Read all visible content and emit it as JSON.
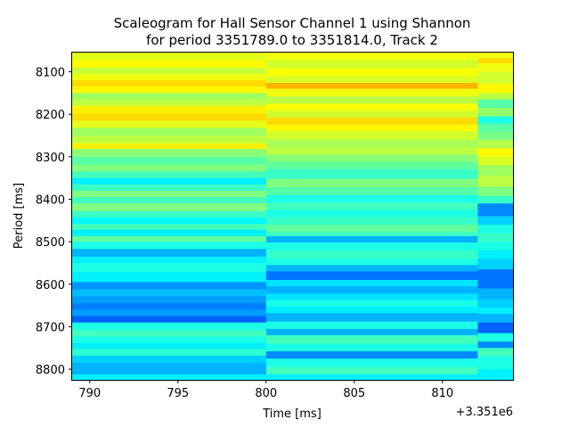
{
  "chart_data": {
    "type": "heatmap",
    "title_lines": [
      "Scaleogram for Hall Sensor Channel 1 using Shannon",
      "for period 3351789.0 to 3351814.0, Track 2"
    ],
    "xlabel": "Time [ms]",
    "ylabel": "Period [ms]",
    "x_offset_label": "+3.351e6",
    "x_ticks": [
      790,
      795,
      800,
      805,
      810
    ],
    "x_tick_labels": [
      "790",
      "795",
      "800",
      "805",
      "810"
    ],
    "y_ticks": [
      8100,
      8200,
      8300,
      8400,
      8500,
      8600,
      8700,
      8800
    ],
    "y_tick_labels": [
      "8100",
      "8200",
      "8300",
      "8400",
      "8500",
      "8600",
      "8700",
      "8800"
    ],
    "xlim": [
      789,
      814
    ],
    "ylim_top": 8055,
    "ylim_bottom": 8825,
    "colormap": "jet",
    "colormap_range": [
      0,
      1
    ],
    "columns": [
      {
        "x_start": 789,
        "x_end": 800,
        "rows": [
          [
            8055,
            8073,
            0.6
          ],
          [
            8073,
            8090,
            0.63
          ],
          [
            8090,
            8105,
            0.57
          ],
          [
            8105,
            8120,
            0.61
          ],
          [
            8120,
            8135,
            0.66
          ],
          [
            8135,
            8150,
            0.63
          ],
          [
            8150,
            8165,
            0.53
          ],
          [
            8165,
            8180,
            0.56
          ],
          [
            8180,
            8198,
            0.64
          ],
          [
            8198,
            8215,
            0.66
          ],
          [
            8215,
            8232,
            0.6
          ],
          [
            8232,
            8250,
            0.53
          ],
          [
            8250,
            8268,
            0.56
          ],
          [
            8268,
            8282,
            0.64
          ],
          [
            8282,
            8300,
            0.51
          ],
          [
            8300,
            8318,
            0.46
          ],
          [
            8318,
            8335,
            0.5
          ],
          [
            8335,
            8350,
            0.44
          ],
          [
            8350,
            8365,
            0.36
          ],
          [
            8365,
            8380,
            0.43
          ],
          [
            8380,
            8395,
            0.5
          ],
          [
            8395,
            8410,
            0.44
          ],
          [
            8410,
            8428,
            0.5
          ],
          [
            8428,
            8443,
            0.43
          ],
          [
            8443,
            8458,
            0.37
          ],
          [
            8458,
            8472,
            0.44
          ],
          [
            8472,
            8487,
            0.36
          ],
          [
            8487,
            8500,
            0.47
          ],
          [
            8500,
            8517,
            0.4
          ],
          [
            8517,
            8535,
            0.3
          ],
          [
            8535,
            8550,
            0.36
          ],
          [
            8550,
            8572,
            0.4
          ],
          [
            8572,
            8595,
            0.36
          ],
          [
            8595,
            8612,
            0.27
          ],
          [
            8612,
            8628,
            0.31
          ],
          [
            8628,
            8645,
            0.28
          ],
          [
            8645,
            8660,
            0.25
          ],
          [
            8660,
            8675,
            0.28
          ],
          [
            8675,
            8690,
            0.22
          ],
          [
            8690,
            8708,
            0.4
          ],
          [
            8708,
            8723,
            0.44
          ],
          [
            8723,
            8738,
            0.4
          ],
          [
            8738,
            8752,
            0.36
          ],
          [
            8752,
            8768,
            0.42
          ],
          [
            8768,
            8785,
            0.33
          ],
          [
            8785,
            8812,
            0.3
          ],
          [
            8812,
            8825,
            0.36
          ]
        ]
      },
      {
        "x_start": 800,
        "x_end": 812,
        "rows": [
          [
            8055,
            8073,
            0.61
          ],
          [
            8073,
            8092,
            0.58
          ],
          [
            8092,
            8110,
            0.62
          ],
          [
            8110,
            8126,
            0.59
          ],
          [
            8126,
            8140,
            0.7
          ],
          [
            8140,
            8158,
            0.61
          ],
          [
            8158,
            8175,
            0.56
          ],
          [
            8175,
            8192,
            0.62
          ],
          [
            8192,
            8208,
            0.58
          ],
          [
            8208,
            8225,
            0.66
          ],
          [
            8225,
            8240,
            0.63
          ],
          [
            8240,
            8260,
            0.58
          ],
          [
            8260,
            8278,
            0.54
          ],
          [
            8278,
            8295,
            0.56
          ],
          [
            8295,
            8312,
            0.51
          ],
          [
            8312,
            8330,
            0.47
          ],
          [
            8330,
            8352,
            0.43
          ],
          [
            8352,
            8372,
            0.5
          ],
          [
            8372,
            8390,
            0.46
          ],
          [
            8390,
            8408,
            0.4
          ],
          [
            8408,
            8425,
            0.44
          ],
          [
            8425,
            8442,
            0.4
          ],
          [
            8442,
            8460,
            0.43
          ],
          [
            8460,
            8478,
            0.47
          ],
          [
            8478,
            8487,
            0.43
          ],
          [
            8487,
            8502,
            0.3
          ],
          [
            8502,
            8520,
            0.4
          ],
          [
            8520,
            8540,
            0.43
          ],
          [
            8540,
            8555,
            0.4
          ],
          [
            8555,
            8570,
            0.3
          ],
          [
            8570,
            8590,
            0.24
          ],
          [
            8590,
            8605,
            0.35
          ],
          [
            8605,
            8622,
            0.3
          ],
          [
            8622,
            8638,
            0.35
          ],
          [
            8638,
            8652,
            0.4
          ],
          [
            8652,
            8668,
            0.36
          ],
          [
            8668,
            8688,
            0.3
          ],
          [
            8688,
            8705,
            0.4
          ],
          [
            8705,
            8720,
            0.3
          ],
          [
            8720,
            8740,
            0.44
          ],
          [
            8740,
            8758,
            0.4
          ],
          [
            8758,
            8775,
            0.26
          ],
          [
            8775,
            8795,
            0.4
          ],
          [
            8795,
            8812,
            0.44
          ],
          [
            8812,
            8825,
            0.36
          ]
        ]
      },
      {
        "x_start": 812,
        "x_end": 814,
        "rows": [
          [
            8055,
            8068,
            0.61
          ],
          [
            8068,
            8080,
            0.66
          ],
          [
            8080,
            8100,
            0.61
          ],
          [
            8100,
            8128,
            0.58
          ],
          [
            8128,
            8150,
            0.63
          ],
          [
            8150,
            8165,
            0.56
          ],
          [
            8165,
            8185,
            0.46
          ],
          [
            8185,
            8205,
            0.52
          ],
          [
            8205,
            8222,
            0.4
          ],
          [
            8222,
            8240,
            0.46
          ],
          [
            8240,
            8260,
            0.49
          ],
          [
            8260,
            8280,
            0.55
          ],
          [
            8280,
            8300,
            0.63
          ],
          [
            8300,
            8320,
            0.59
          ],
          [
            8320,
            8345,
            0.53
          ],
          [
            8345,
            8370,
            0.56
          ],
          [
            8370,
            8392,
            0.5
          ],
          [
            8392,
            8410,
            0.43
          ],
          [
            8410,
            8440,
            0.26
          ],
          [
            8440,
            8460,
            0.33
          ],
          [
            8460,
            8480,
            0.4
          ],
          [
            8480,
            8500,
            0.43
          ],
          [
            8500,
            8520,
            0.4
          ],
          [
            8520,
            8540,
            0.36
          ],
          [
            8540,
            8565,
            0.33
          ],
          [
            8565,
            8610,
            0.24
          ],
          [
            8610,
            8635,
            0.3
          ],
          [
            8635,
            8655,
            0.33
          ],
          [
            8655,
            8670,
            0.36
          ],
          [
            8670,
            8690,
            0.3
          ],
          [
            8690,
            8715,
            0.22
          ],
          [
            8715,
            8735,
            0.4
          ],
          [
            8735,
            8750,
            0.26
          ],
          [
            8750,
            8770,
            0.44
          ],
          [
            8770,
            8800,
            0.4
          ],
          [
            8800,
            8825,
            0.36
          ]
        ]
      }
    ]
  }
}
